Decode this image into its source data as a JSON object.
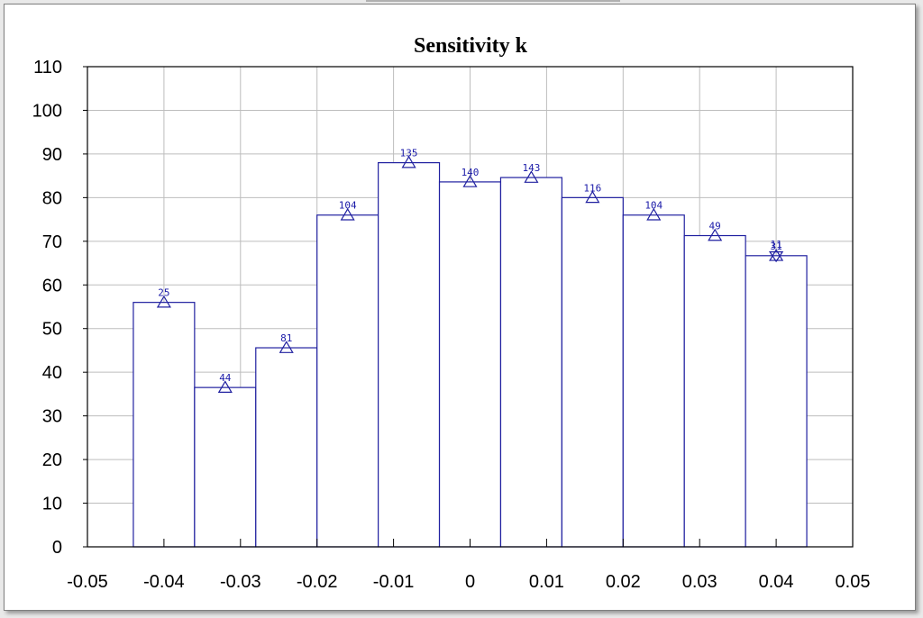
{
  "chart_data": {
    "type": "bar",
    "title": "Sensitivity k",
    "xlabel": "",
    "ylabel": "",
    "xlim": [
      -0.05,
      0.05
    ],
    "ylim": [
      0,
      110
    ],
    "x_ticks": [
      -0.05,
      -0.04,
      -0.03,
      -0.02,
      -0.01,
      0,
      0.01,
      0.02,
      0.03,
      0.04,
      0.05
    ],
    "x_tick_labels": [
      "-0.05",
      "-0.04",
      "-0.03",
      "-0.02",
      "-0.01",
      "0",
      "0.01",
      "0.02",
      "0.03",
      "0.04",
      "0.05"
    ],
    "y_ticks": [
      0,
      10,
      20,
      30,
      40,
      50,
      60,
      70,
      80,
      90,
      100,
      110
    ],
    "y_tick_labels": [
      "0",
      "10",
      "20",
      "30",
      "40",
      "50",
      "60",
      "70",
      "80",
      "90",
      "100",
      "110"
    ],
    "grid": true,
    "bars": [
      {
        "x0": -0.044,
        "x1": -0.036,
        "value": 56,
        "label": "25"
      },
      {
        "x0": -0.036,
        "x1": -0.028,
        "value": 36.5,
        "label": "44"
      },
      {
        "x0": -0.028,
        "x1": -0.02,
        "value": 45.6,
        "label": "81"
      },
      {
        "x0": -0.02,
        "x1": -0.012,
        "value": 76,
        "label": "104"
      },
      {
        "x0": -0.012,
        "x1": -0.004,
        "value": 88,
        "label": "135"
      },
      {
        "x0": -0.004,
        "x1": 0.004,
        "value": 83.6,
        "label": "140"
      },
      {
        "x0": 0.004,
        "x1": 0.012,
        "value": 84.6,
        "label": "143"
      },
      {
        "x0": 0.012,
        "x1": 0.02,
        "value": 80,
        "label": "116"
      },
      {
        "x0": 0.02,
        "x1": 0.028,
        "value": 76,
        "label": "104"
      },
      {
        "x0": 0.028,
        "x1": 0.036,
        "value": 71.3,
        "label": "49"
      },
      {
        "x0": 0.036,
        "x1": 0.044,
        "value": 66.7,
        "label": "31"
      }
    ],
    "markers": [
      {
        "x": -0.04,
        "y": 56,
        "shape": "triangle-up"
      },
      {
        "x": -0.032,
        "y": 36.5,
        "shape": "triangle-up"
      },
      {
        "x": -0.024,
        "y": 45.6,
        "shape": "triangle-up"
      },
      {
        "x": -0.016,
        "y": 76,
        "shape": "triangle-up"
      },
      {
        "x": -0.008,
        "y": 88,
        "shape": "triangle-up"
      },
      {
        "x": 0.0,
        "y": 83.6,
        "shape": "triangle-up"
      },
      {
        "x": 0.008,
        "y": 84.6,
        "shape": "triangle-up"
      },
      {
        "x": 0.016,
        "y": 80,
        "shape": "triangle-up"
      },
      {
        "x": 0.024,
        "y": 76,
        "shape": "triangle-up"
      },
      {
        "x": 0.032,
        "y": 71.3,
        "shape": "triangle-up"
      },
      {
        "x": 0.04,
        "y": 66.7,
        "shape": "triangle-up"
      },
      {
        "x": 0.04,
        "y": 66.7,
        "shape": "triangle-down"
      }
    ],
    "extra_labels": [
      {
        "x": 0.04,
        "y": 66.7,
        "label": "11"
      }
    ],
    "colors": {
      "bars": "#2020a0",
      "markers": "#2020a0",
      "labels": "#1a1aa8",
      "grid": "#bdbdbd",
      "axis": "#000000"
    }
  }
}
